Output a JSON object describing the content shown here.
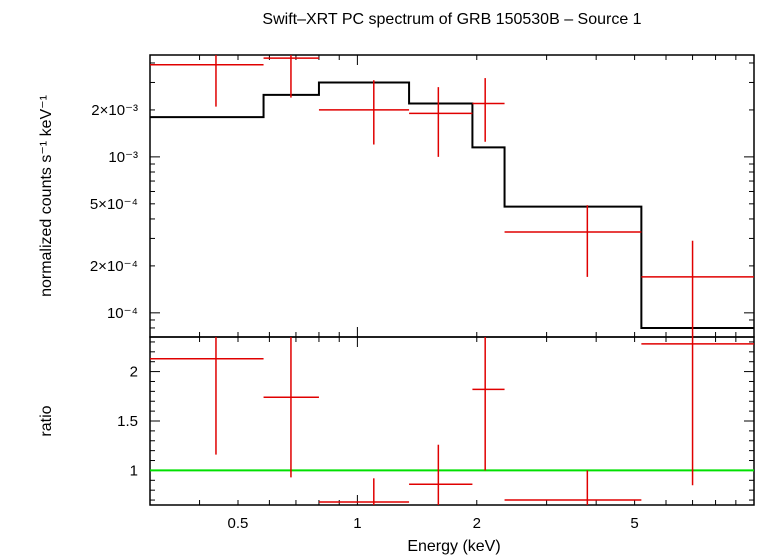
{
  "chart_data": {
    "type": "scatter",
    "title": "Swift–XRT PC spectrum of GRB 150530B – Source 1",
    "xlabel": "Energy (keV)",
    "xscale": "log",
    "xlim": [
      0.3,
      10
    ],
    "x_tick_labels": [
      {
        "value": 0.5,
        "label": "0.5"
      },
      {
        "value": 1,
        "label": "1"
      },
      {
        "value": 2,
        "label": "2"
      },
      {
        "value": 5,
        "label": "5"
      }
    ],
    "panels": [
      {
        "name": "spectrum",
        "ylabel": "normalized counts s⁻¹ keV⁻¹",
        "yscale": "log",
        "ylim": [
          7e-05,
          0.0045
        ],
        "y_tick_labels": [
          {
            "value": 0.0001,
            "label": "10⁻⁴"
          },
          {
            "value": 0.0002,
            "label": "2×10⁻⁴"
          },
          {
            "value": 0.0005,
            "label": "5×10⁻⁴"
          },
          {
            "value": 0.001,
            "label": "10⁻³"
          },
          {
            "value": 0.002,
            "label": "2×10⁻³"
          }
        ],
        "data": {
          "color": "#e00000",
          "points": [
            {
              "x_lo": 0.3,
              "x_hi": 0.58,
              "x": 0.44,
              "y": 0.0039,
              "y_lo": 0.0021,
              "y_hi": 0.0045
            },
            {
              "x_lo": 0.58,
              "x_hi": 0.8,
              "x": 0.68,
              "y": 0.0043,
              "y_lo": 0.0024,
              "y_hi": 0.0045
            },
            {
              "x_lo": 0.8,
              "x_hi": 1.35,
              "x": 1.1,
              "y": 0.002,
              "y_lo": 0.0012,
              "y_hi": 0.0031
            },
            {
              "x_lo": 1.35,
              "x_hi": 1.95,
              "x": 1.6,
              "y": 0.0019,
              "y_lo": 0.001,
              "y_hi": 0.0028
            },
            {
              "x_lo": 1.95,
              "x_hi": 2.35,
              "x": 2.1,
              "y": 0.0022,
              "y_lo": 0.00125,
              "y_hi": 0.0032
            }
          ],
          "points_b": [
            {
              "x_lo": 2.35,
              "x_hi": 5.2,
              "x": 3.8,
              "y": 0.00033,
              "y_lo": 0.00017,
              "y_hi": 0.00049
            },
            {
              "x_lo": 5.2,
              "x_hi": 10,
              "x": 7.0,
              "y": 0.00017,
              "y_lo": 7e-05,
              "y_hi": 0.00029
            }
          ]
        },
        "model": {
          "color": "#000000",
          "steps": [
            {
              "x_lo": 0.3,
              "x_hi": 0.58,
              "y": 0.0018
            },
            {
              "x_lo": 0.58,
              "x_hi": 0.8,
              "y": 0.0025
            },
            {
              "x_lo": 0.8,
              "x_hi": 1.35,
              "y": 0.003
            },
            {
              "x_lo": 1.35,
              "x_hi": 1.95,
              "y": 0.0022
            },
            {
              "x_lo": 1.95,
              "x_hi": 2.35,
              "y": 0.00115
            },
            {
              "x_lo": 2.35,
              "x_hi": 5.2,
              "y": 0.00048
            },
            {
              "x_lo": 5.2,
              "x_hi": 10,
              "y": 8e-05
            }
          ]
        }
      },
      {
        "name": "ratio",
        "ylabel": "ratio",
        "yscale": "linear",
        "ylim": [
          0.65,
          2.35
        ],
        "y_tick_labels": [
          {
            "value": 1,
            "label": "1"
          },
          {
            "value": 1.5,
            "label": "1.5"
          },
          {
            "value": 2,
            "label": "2"
          }
        ],
        "reference_line": {
          "y": 1,
          "color": "#00e000"
        },
        "data": {
          "color": "#e00000",
          "points": [
            {
              "x_lo": 0.3,
              "x_hi": 0.58,
              "x": 0.44,
              "y": 2.13,
              "y_lo": 1.16,
              "y_hi": 2.35
            },
            {
              "x_lo": 0.58,
              "x_hi": 0.8,
              "x": 0.68,
              "y": 1.74,
              "y_lo": 0.93,
              "y_hi": 2.35
            },
            {
              "x_lo": 0.8,
              "x_hi": 1.35,
              "x": 1.1,
              "y": 0.68,
              "y_lo": 0.65,
              "y_hi": 0.92
            },
            {
              "x_lo": 1.35,
              "x_hi": 1.95,
              "x": 1.6,
              "y": 0.86,
              "y_lo": 0.65,
              "y_hi": 1.26
            },
            {
              "x_lo": 1.95,
              "x_hi": 2.35,
              "x": 2.1,
              "y": 1.82,
              "y_lo": 1.0,
              "y_hi": 2.35
            },
            {
              "x_lo": 2.35,
              "x_hi": 5.2,
              "x": 3.8,
              "y": 0.7,
              "y_lo": 0.65,
              "y_hi": 1.0
            },
            {
              "x_lo": 5.2,
              "x_hi": 10,
              "x": 7.0,
              "y": 2.28,
              "y_lo": 0.85,
              "y_hi": 2.35
            }
          ]
        }
      }
    ]
  }
}
